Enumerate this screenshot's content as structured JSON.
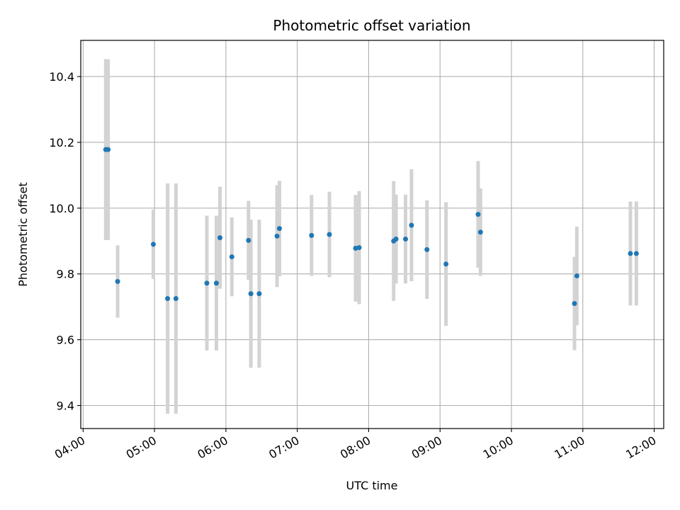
{
  "chart_data": {
    "type": "scatter",
    "title": "Photometric offset variation",
    "xlabel": "UTC time",
    "ylabel": "Photometric offset",
    "x_ticks": [
      "04:00",
      "05:00",
      "06:00",
      "07:00",
      "08:00",
      "09:00",
      "10:00",
      "11:00",
      "12:00"
    ],
    "y_ticks": [
      "9.4",
      "9.6",
      "9.8",
      "10.0",
      "10.2",
      "10.4"
    ],
    "xlim": [
      "03:58",
      "12:08"
    ],
    "ylim": [
      9.33,
      10.51
    ],
    "grid": true,
    "colors": {
      "point": "#1f77b4",
      "errorbar": "#d3d3d3",
      "grid": "#b0b0b0"
    },
    "series": [
      {
        "points": [
          {
            "x": "04:19",
            "y": 10.178,
            "err": 0.275
          },
          {
            "x": "04:21",
            "y": 10.178,
            "err": 0.275
          },
          {
            "x": "04:29",
            "y": 9.777,
            "err": 0.11
          },
          {
            "x": "04:59",
            "y": 9.89,
            "err": 0.105
          },
          {
            "x": "05:11",
            "y": 9.725,
            "err": 0.35
          },
          {
            "x": "05:18",
            "y": 9.725,
            "err": 0.35
          },
          {
            "x": "05:44",
            "y": 9.772,
            "err": 0.205
          },
          {
            "x": "05:52",
            "y": 9.772,
            "err": 0.205
          },
          {
            "x": "05:55",
            "y": 9.91,
            "err": 0.155
          },
          {
            "x": "06:05",
            "y": 9.852,
            "err": 0.12
          },
          {
            "x": "06:19",
            "y": 9.902,
            "err": 0.12
          },
          {
            "x": "06:21",
            "y": 9.74,
            "err": 0.225
          },
          {
            "x": "06:28",
            "y": 9.74,
            "err": 0.225
          },
          {
            "x": "06:43",
            "y": 9.915,
            "err": 0.155
          },
          {
            "x": "06:45",
            "y": 9.938,
            "err": 0.145
          },
          {
            "x": "07:12",
            "y": 9.917,
            "err": 0.123
          },
          {
            "x": "07:27",
            "y": 9.92,
            "err": 0.13
          },
          {
            "x": "07:49",
            "y": 9.878,
            "err": 0.162
          },
          {
            "x": "07:52",
            "y": 9.88,
            "err": 0.172
          },
          {
            "x": "08:21",
            "y": 9.9,
            "err": 0.182
          },
          {
            "x": "08:23",
            "y": 9.906,
            "err": 0.135
          },
          {
            "x": "08:31",
            "y": 9.906,
            "err": 0.135
          },
          {
            "x": "08:36",
            "y": 9.948,
            "err": 0.17
          },
          {
            "x": "08:49",
            "y": 9.874,
            "err": 0.15
          },
          {
            "x": "09:05",
            "y": 9.83,
            "err": 0.188
          },
          {
            "x": "09:32",
            "y": 9.981,
            "err": 0.162
          },
          {
            "x": "09:34",
            "y": 9.927,
            "err": 0.133
          },
          {
            "x": "10:53",
            "y": 9.71,
            "err": 0.142
          },
          {
            "x": "10:55",
            "y": 9.794,
            "err": 0.15
          },
          {
            "x": "11:40",
            "y": 9.862,
            "err": 0.158
          },
          {
            "x": "11:45",
            "y": 9.862,
            "err": 0.158
          }
        ]
      }
    ]
  }
}
